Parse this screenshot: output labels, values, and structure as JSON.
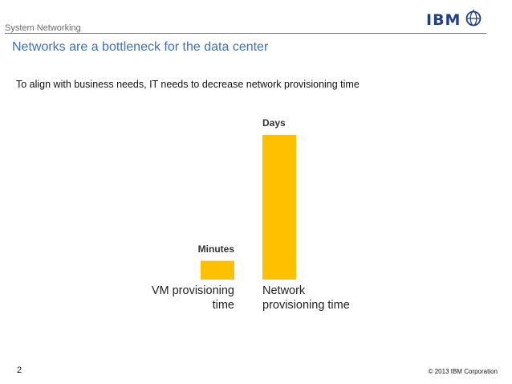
{
  "header": {
    "section_label": "System Networking",
    "logo_text": "IBM"
  },
  "slide": {
    "title": "Networks are a bottleneck for the data center",
    "subtitle": "To align with business needs, IT needs to decrease network provisioning time"
  },
  "chart_data": {
    "type": "bar",
    "title": "",
    "xlabel": "",
    "ylabel": "",
    "categories": [
      "VM provisioning time",
      "Network provisioning time"
    ],
    "category_label_lines": [
      [
        "VM provisioning",
        "time"
      ],
      [
        "Network",
        "provisioning time"
      ]
    ],
    "values": [
      0.13,
      1.0
    ],
    "value_units_note": "relative bar height; no numeric axis printed",
    "data_labels": [
      "Minutes",
      "Days"
    ],
    "bar_color": "#FFC000",
    "ylim": [
      0,
      1
    ],
    "grid": false,
    "legend": "none"
  },
  "footer": {
    "page_number": "2",
    "copyright": "© 2013 IBM Corporation"
  },
  "colors": {
    "title": "#3C6FC6",
    "logo": "#1F3E8C",
    "bar": "#FFC000"
  },
  "icons": [
    "ibm-logo-icon",
    "globe-icon"
  ]
}
